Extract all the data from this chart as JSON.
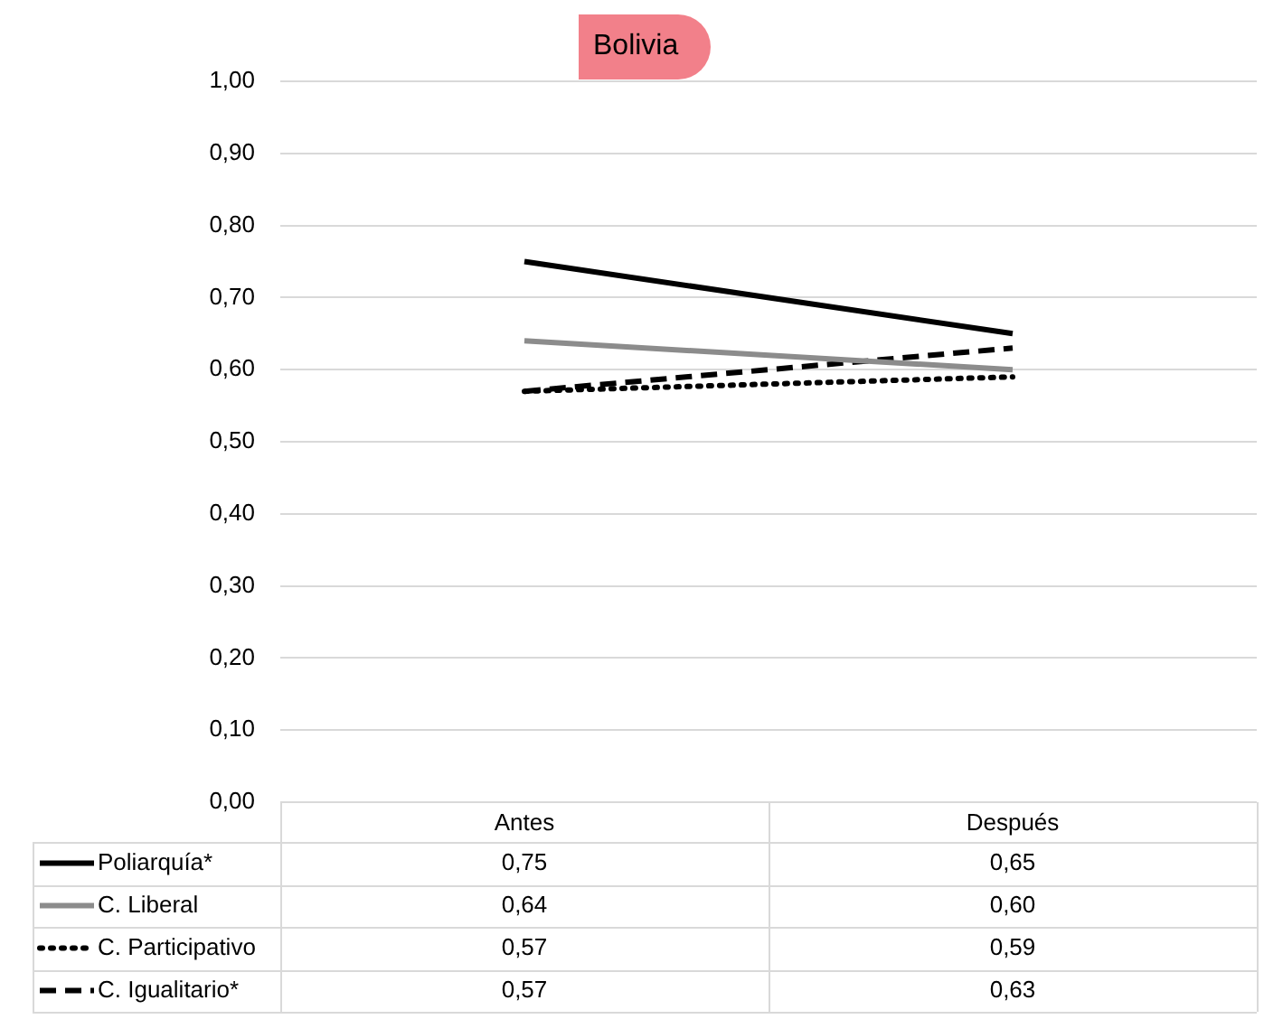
{
  "chart_data": {
    "type": "line",
    "title": "Bolivia",
    "categories": [
      "Antes",
      "Después"
    ],
    "series": [
      {
        "name": "Poliarquía*",
        "color": "#000000",
        "line_style": "solid",
        "values": [
          0.75,
          0.65
        ],
        "value_labels": [
          "0,75",
          "0,65"
        ]
      },
      {
        "name": "C. Liberal",
        "color": "#8c8c8c",
        "line_style": "solid",
        "values": [
          0.64,
          0.6
        ],
        "value_labels": [
          "0,64",
          "0,60"
        ]
      },
      {
        "name": "C. Participativo",
        "color": "#000000",
        "line_style": "dotted",
        "values": [
          0.57,
          0.59
        ],
        "value_labels": [
          "0,57",
          "0,59"
        ]
      },
      {
        "name": "C. Igualitario*",
        "color": "#000000",
        "line_style": "dashed",
        "values": [
          0.57,
          0.63
        ],
        "value_labels": [
          "0,57",
          "0,63"
        ]
      }
    ],
    "ylim": [
      0,
      1
    ],
    "yticks": [
      {
        "value": 0,
        "label": "0,00"
      },
      {
        "value": 0.1,
        "label": "0,10"
      },
      {
        "value": 0.2,
        "label": "0,20"
      },
      {
        "value": 0.3,
        "label": "0,30"
      },
      {
        "value": 0.4,
        "label": "0,40"
      },
      {
        "value": 0.5,
        "label": "0,50"
      },
      {
        "value": 0.6,
        "label": "0,60"
      },
      {
        "value": 0.7,
        "label": "0,70"
      },
      {
        "value": 0.8,
        "label": "0,80"
      },
      {
        "value": 0.9,
        "label": "0,90"
      },
      {
        "value": 1,
        "label": "1,00"
      }
    ],
    "grid": "y",
    "legend": "bottom",
    "marker": "none"
  }
}
